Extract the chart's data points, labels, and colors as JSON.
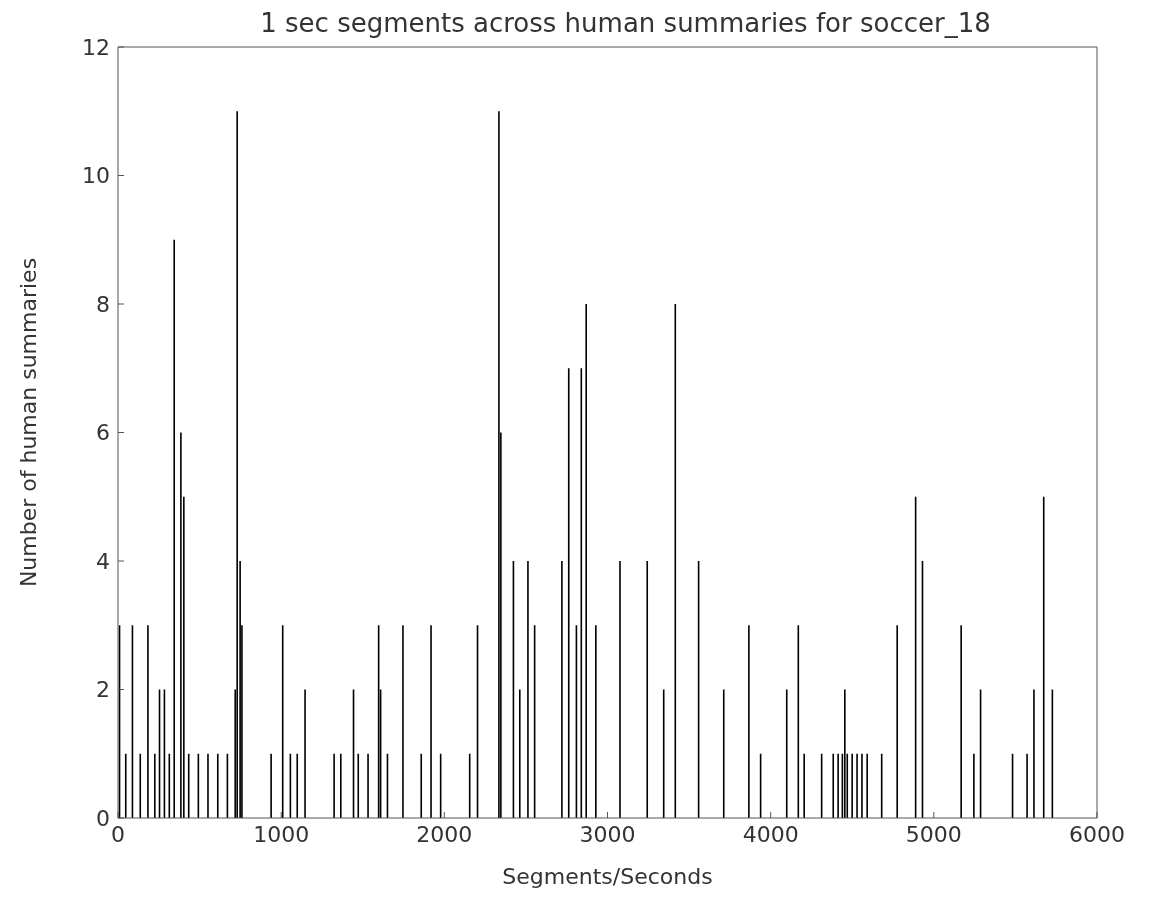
{
  "chart_data": {
    "type": "bar",
    "title": "1 sec segments across human summaries for soccer_18",
    "xlabel": "Segments/Seconds",
    "ylabel": "Number of human summaries",
    "x": [
      10,
      48,
      89,
      137,
      184,
      226,
      255,
      285,
      315,
      345,
      386,
      404,
      434,
      493,
      552,
      612,
      671,
      719,
      731,
      749,
      760,
      939,
      1010,
      1057,
      1099,
      1147,
      1325,
      1366,
      1444,
      1473,
      1533,
      1598,
      1610,
      1652,
      1747,
      1859,
      1919,
      1978,
      2156,
      2204,
      2335,
      2347,
      2424,
      2463,
      2513,
      2554,
      2721,
      2763,
      2810,
      2840,
      2870,
      2929,
      3077,
      3244,
      3345,
      3416,
      3559,
      3713,
      3867,
      3939,
      4099,
      4170,
      4206,
      4313,
      4384,
      4414,
      4440,
      4455,
      4470,
      4500,
      4530,
      4560,
      4592,
      4681,
      4776,
      4889,
      4931,
      5168,
      5246,
      5287,
      5483,
      5572,
      5614,
      5674,
      5727
    ],
    "values": [
      3,
      1,
      3,
      1,
      3,
      1,
      2,
      2,
      1,
      9,
      6,
      5,
      1,
      1,
      1,
      1,
      1,
      2,
      11,
      4,
      3,
      1,
      3,
      1,
      1,
      2,
      1,
      1,
      2,
      1,
      1,
      3,
      2,
      1,
      3,
      1,
      3,
      1,
      1,
      3,
      11,
      6,
      4,
      2,
      4,
      3,
      4,
      7,
      3,
      7,
      8,
      3,
      4,
      4,
      2,
      8,
      4,
      2,
      3,
      1,
      2,
      3,
      1,
      1,
      1,
      1,
      1,
      2,
      1,
      1,
      1,
      1,
      1,
      1,
      3,
      5,
      4,
      3,
      1,
      2,
      1,
      1,
      2,
      5,
      2
    ],
    "color": "#000000",
    "xlim": [
      0,
      6000
    ],
    "xticks": [
      0,
      1000,
      2000,
      3000,
      4000,
      5000,
      6000
    ],
    "ylim": [
      0,
      12
    ],
    "yticks": [
      0,
      2,
      4,
      6,
      8,
      10,
      12
    ],
    "grid": false
  }
}
